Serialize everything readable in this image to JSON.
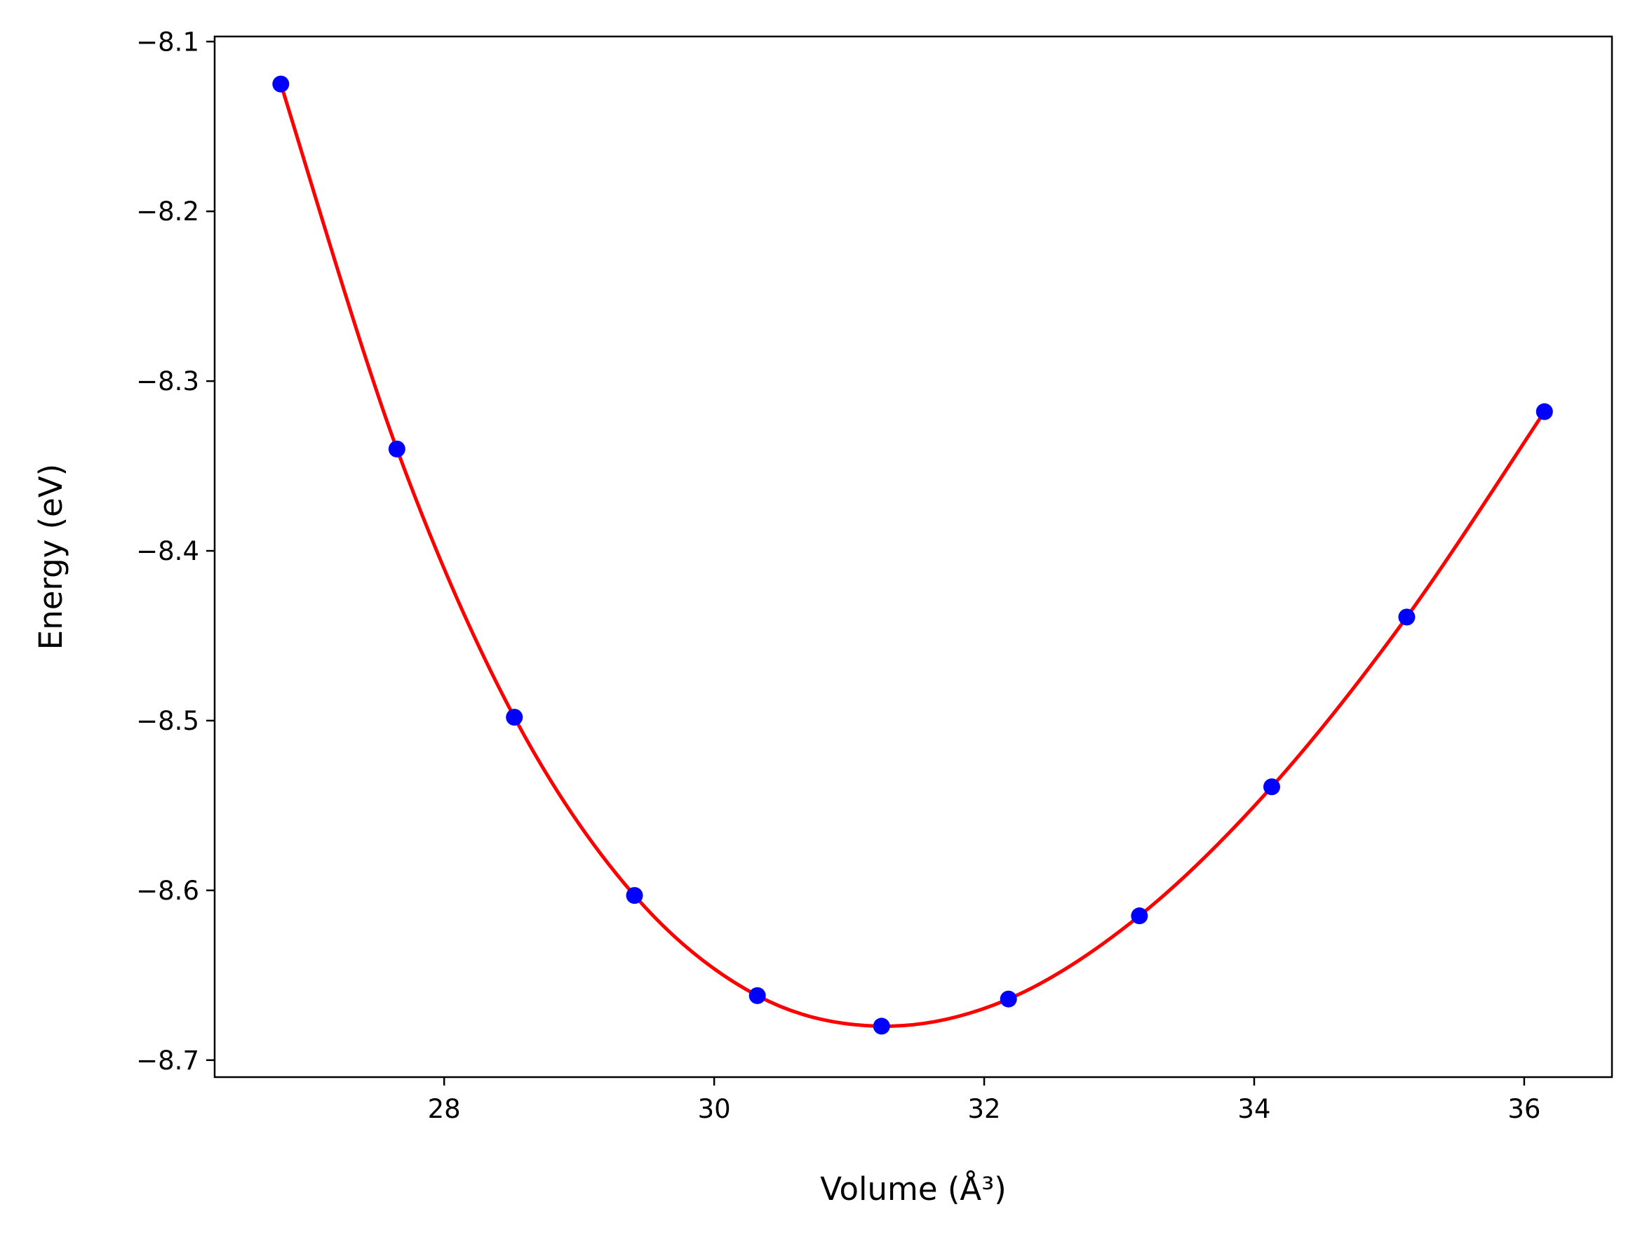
{
  "chart_data": {
    "type": "scatter",
    "xlabel": "Volume (Å³)",
    "ylabel": "Energy (eV)",
    "xlim": [
      26.3,
      36.65
    ],
    "ylim": [
      -8.71,
      -8.097
    ],
    "xticks": [
      28,
      30,
      32,
      34,
      36
    ],
    "xtick_labels": [
      "28",
      "30",
      "32",
      "34",
      "36"
    ],
    "yticks": [
      -8.7,
      -8.6,
      -8.5,
      -8.4,
      -8.3,
      -8.2,
      -8.1
    ],
    "ytick_labels": [
      "−8.7",
      "−8.6",
      "−8.5",
      "−8.4",
      "−8.3",
      "−8.2",
      "−8.1"
    ],
    "grid": false,
    "series": [
      {
        "kind": "points",
        "color": "#0000ff",
        "x": [
          26.79,
          27.65,
          28.52,
          29.41,
          30.32,
          31.24,
          32.18,
          33.15,
          34.13,
          35.13,
          36.15
        ],
        "y": [
          -8.125,
          -8.34,
          -8.498,
          -8.603,
          -8.662,
          -8.68,
          -8.664,
          -8.615,
          -8.539,
          -8.439,
          -8.318
        ]
      },
      {
        "kind": "fit-curve",
        "color": "#ff0000",
        "x": [
          26.79,
          27.65,
          28.52,
          29.41,
          30.32,
          31.24,
          32.18,
          33.15,
          34.13,
          35.13,
          36.15
        ],
        "y": [
          -8.125,
          -8.34,
          -8.498,
          -8.603,
          -8.662,
          -8.68,
          -8.664,
          -8.615,
          -8.539,
          -8.439,
          -8.318
        ]
      }
    ]
  },
  "colors": {
    "axes": "#000000",
    "background": "#ffffff"
  }
}
